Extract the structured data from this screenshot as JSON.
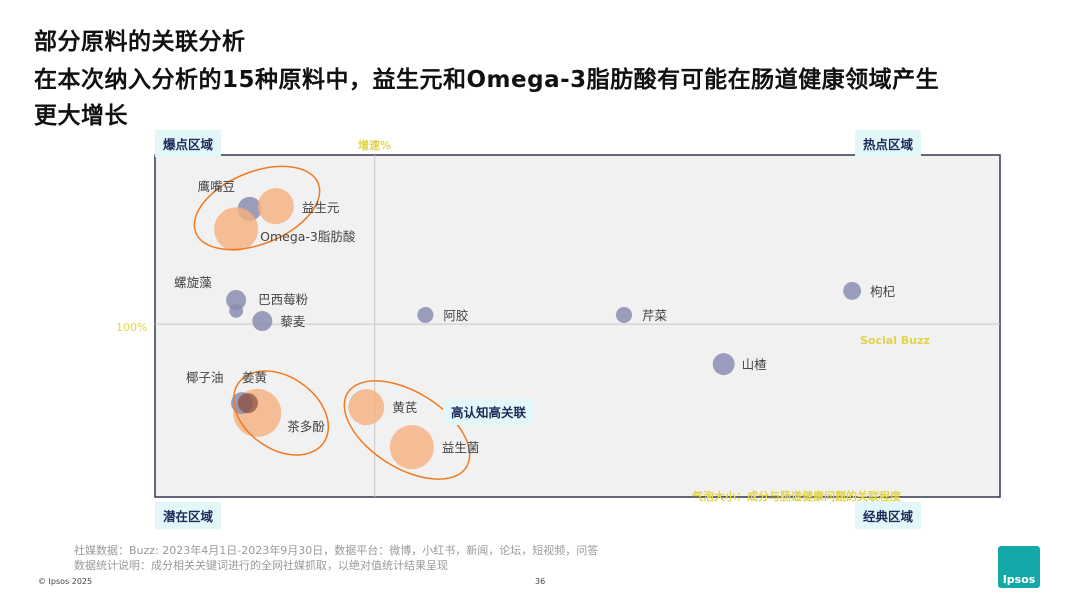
{
  "title_lines": [
    "部分原料的关联分析",
    "在本次纳入分析的15种原料中，益生元和Omega-3脂肪酸有可能在肠道健康领域产生",
    "更大增长"
  ],
  "quadrants": {
    "top_left": "爆点区域",
    "top_right": "热点区域",
    "bottom_left": "潜在区域",
    "bottom_right": "经典区域"
  },
  "highlight_label": "高认知高关联",
  "footer": {
    "source": "社媒数据：Buzz: 2023年4月1日-2023年9月30日，数据平台：微博，小红书，新闻，论坛，短视频，问答",
    "note": "数据统计说明：成分相关关键词进行的全网社媒抓取，以绝对值统计结果呈现",
    "copyright": "© Ipsos 2025",
    "page": "36",
    "logo": "Ipsos"
  },
  "colors": {
    "gray_bubble": "#8a8db0",
    "orange_bubble": "#f5b07f",
    "ellipse": "#f07a20",
    "axis_label": "#e0d44a"
  },
  "chart_data": {
    "type": "scatter",
    "xlabel": "Social Buzz",
    "ylabel": "增速%",
    "y_ref_label": "100%",
    "size_label": "气泡大小：成分与肠道健康问题的关联程度",
    "xlim": [
      0,
      100
    ],
    "ylim": [
      0,
      100
    ],
    "x_ref": 26,
    "y_ref": 51,
    "points": [
      {
        "name": "鹰嘴豆",
        "x": 11.2,
        "y": 85,
        "size": 36,
        "color": "gray"
      },
      {
        "name": "益生元",
        "x": 14.3,
        "y": 85.8,
        "size": 81,
        "color": "orange"
      },
      {
        "name": "Omega-3脂肪酸",
        "x": 9.6,
        "y": 79,
        "size": 121,
        "color": "orange"
      },
      {
        "name": "螺旋藻",
        "x": 9.6,
        "y": 54.9,
        "size": 12,
        "color": "gray"
      },
      {
        "name": "巴西莓粉",
        "x": 9.6,
        "y": 58.1,
        "size": 25,
        "color": "gray"
      },
      {
        "name": "藜麦",
        "x": 12.7,
        "y": 51.9,
        "size": 25,
        "color": "gray"
      },
      {
        "name": "阿胶",
        "x": 32,
        "y": 53.7,
        "size": 16,
        "color": "gray"
      },
      {
        "name": "芹菜",
        "x": 55.5,
        "y": 53.7,
        "size": 16,
        "color": "gray"
      },
      {
        "name": "枸杞",
        "x": 82.5,
        "y": 60.8,
        "size": 20,
        "color": "gray"
      },
      {
        "name": "山楂",
        "x": 67.3,
        "y": 39.2,
        "size": 30,
        "color": "gray"
      },
      {
        "name": "茶多酚",
        "x": 12.1,
        "y": 24.8,
        "size": 144,
        "color": "orange"
      },
      {
        "name": "椰子油",
        "x": 10.3,
        "y": 27.7,
        "size": 30,
        "color": "gray"
      },
      {
        "name": "姜黄",
        "x": 11,
        "y": 27.7,
        "size": 25,
        "color": "brown"
      },
      {
        "name": "黄芪",
        "x": 25,
        "y": 26.5,
        "size": 81,
        "color": "orange"
      },
      {
        "name": "益生菌",
        "x": 30.4,
        "y": 14.7,
        "size": 121,
        "color": "orange"
      }
    ]
  }
}
